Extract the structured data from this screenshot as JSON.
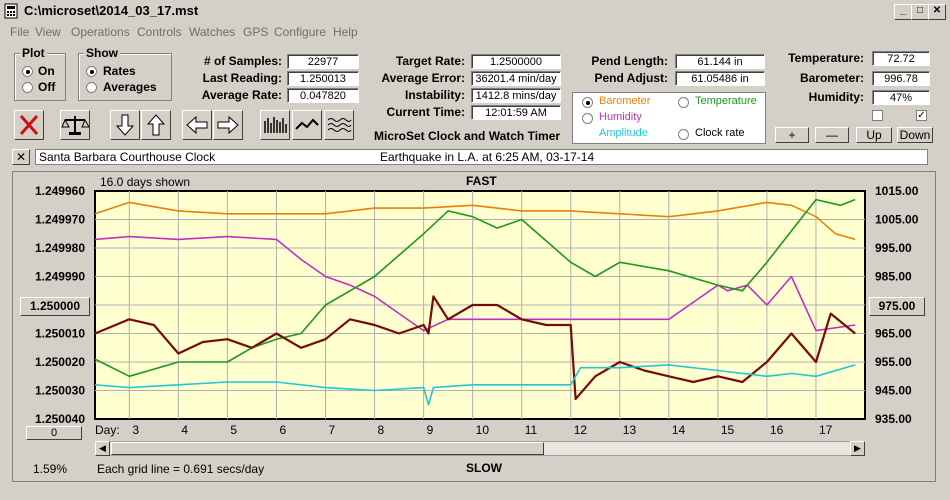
{
  "window": {
    "title": "C:\\microset\\2014_03_17.mst"
  },
  "menu": [
    "File",
    "View",
    "Operations",
    "Controls",
    "Watches",
    "GPS",
    "Configure",
    "Help"
  ],
  "plot_group": {
    "label": "Plot",
    "options": [
      "On",
      "Off"
    ],
    "selected": "On"
  },
  "show_group": {
    "label": "Show",
    "options": [
      "Rates",
      "Averages"
    ],
    "selected": "Rates"
  },
  "stats": {
    "samples_label": "# of Samples:",
    "samples": "22977",
    "last_reading_label": "Last Reading:",
    "last_reading": "1.250013",
    "average_rate_label": "Average Rate:",
    "average_rate": "0.047820",
    "target_rate_label": "Target Rate:",
    "target_rate": "1.2500000",
    "average_error_label": "Average Error:",
    "average_error": "36201.4 min/day",
    "instability_label": "Instability:",
    "instability": "1412.8 mins/day",
    "current_time_label": "Current Time:",
    "current_time": "12:01:59 AM",
    "pend_length_label": "Pend Length:",
    "pend_length": "61.144 in",
    "pend_adjust_label": "Pend Adjust:",
    "pend_adjust": "61.05486 in",
    "temperature_label": "Temperature:",
    "temperature": "72.72",
    "barometer_label": "Barometer:",
    "barometer": "996.78",
    "humidity_label": "Humidity:",
    "humidity": "47%"
  },
  "app_caption": "MicroSet Clock and Watch Timer",
  "sensor_select": {
    "options": [
      {
        "label": "Barometer",
        "color": "#e8800a",
        "selected": true
      },
      {
        "label": "Temperature",
        "color": "#1a9a1a",
        "selected": false
      },
      {
        "label": "Humidity",
        "color": "#c030c0",
        "selected": false
      },
      {
        "label": "Clock rate",
        "color": "#000000",
        "selected": false
      },
      {
        "label": "Amplitude",
        "color": "#20c8d8",
        "selected": false
      }
    ]
  },
  "scale_buttons": {
    "plus": "+",
    "minus": "—",
    "up": "Up",
    "down": "Down"
  },
  "checkboxes": [
    false,
    true
  ],
  "info_bar": {
    "clock_name": "Santa Barbara Courthouse Clock",
    "note": "Earthquake in L.A. at 6:25 AM, 03-17-14"
  },
  "chart_header": {
    "days_shown": "16.0 days shown",
    "fast": "FAST",
    "slow": "SLOW",
    "grid_note": "Each grid line = 0.691 secs/day",
    "percent": "1.59%"
  },
  "chart_buttons": {
    "left_value": "1.250000",
    "right_value": "975.00",
    "zero": "0"
  },
  "chart_data": {
    "type": "line",
    "left_axis": {
      "ticks": [
        "1.249960",
        "1.249970",
        "1.249980",
        "1.249990",
        "1.250000",
        "1.250010",
        "1.250020",
        "1.250030",
        "1.250040"
      ],
      "reversed": true,
      "range": [
        1.24996,
        1.25004
      ]
    },
    "right_axis": {
      "ticks": [
        "1015.00",
        "1005.00",
        "995.00",
        "985.00",
        "975.00",
        "965.00",
        "955.00",
        "945.00",
        "935.00"
      ],
      "range": [
        935,
        1015
      ]
    },
    "x_axis": {
      "label": "Day:",
      "ticks": [
        "3",
        "4",
        "5",
        "6",
        "7",
        "8",
        "9",
        "10",
        "11",
        "12",
        "13",
        "14",
        "15",
        "16",
        "17"
      ],
      "range": [
        2.3,
        18.0
      ]
    },
    "series": [
      {
        "name": "Barometer",
        "color": "#e8800a",
        "x": [
          2.3,
          3,
          4,
          5,
          6,
          7,
          8,
          9,
          10,
          11,
          12,
          13,
          14,
          15,
          16,
          16.5,
          17,
          17.4,
          17.8
        ],
        "y": [
          1007,
          1011,
          1008,
          1007,
          1007,
          1007,
          1009,
          1009,
          1010,
          1008,
          1008,
          1007,
          1006,
          1008,
          1011,
          1010,
          1006,
          1000,
          998
        ]
      },
      {
        "name": "Humidity",
        "color": "#c030c0",
        "x": [
          2.3,
          3,
          4,
          5,
          6,
          6.5,
          7,
          7.5,
          8,
          8.5,
          9,
          9.5,
          10,
          11,
          12,
          13,
          14,
          15,
          15.2,
          15.6,
          16,
          16.5,
          17,
          17.8
        ],
        "y": [
          998,
          999,
          998,
          999,
          998,
          991,
          985,
          982,
          978,
          972,
          966,
          970,
          970,
          970,
          970,
          970,
          970,
          982,
          980,
          982,
          975,
          985,
          966,
          968
        ]
      },
      {
        "name": "Temperature",
        "color": "#1a9a1a",
        "x": [
          2.3,
          3,
          4,
          5,
          5.5,
          6,
          6.5,
          7,
          7.5,
          8,
          9,
          9.5,
          10,
          10.5,
          11,
          12,
          12.5,
          13,
          14,
          15,
          15.5,
          16,
          16.5,
          17,
          17.5,
          17.8
        ],
        "y": [
          956,
          950,
          955,
          955,
          960,
          963,
          965,
          975,
          980,
          985,
          1000,
          1008,
          1006,
          1002,
          1005,
          990,
          985,
          990,
          987,
          982,
          980,
          990,
          1001,
          1012,
          1010,
          1012
        ]
      },
      {
        "name": "Clock rate",
        "color": "#7a0a0a",
        "x": [
          2.3,
          3,
          3.5,
          4,
          4.5,
          5,
          5.5,
          6,
          6.5,
          7,
          7.5,
          8,
          8.5,
          9,
          9.1,
          9.2,
          9.5,
          10,
          10.5,
          11,
          11.5,
          12,
          12.1,
          12.5,
          13,
          13.5,
          14,
          14.5,
          15,
          15.5,
          16,
          16.5,
          17,
          17.3,
          17.8
        ],
        "y": [
          965,
          970,
          968,
          958,
          962,
          963,
          960,
          965,
          960,
          963,
          970,
          968,
          965,
          968,
          965,
          978,
          970,
          975,
          975,
          970,
          968,
          968,
          942,
          950,
          955,
          952,
          950,
          948,
          950,
          948,
          955,
          965,
          955,
          972,
          965
        ]
      },
      {
        "name": "Amplitude",
        "color": "#20c8d8",
        "x": [
          2.3,
          3,
          4,
          5,
          6,
          7,
          8,
          9,
          9.1,
          9.2,
          10,
          11,
          12,
          12.2,
          13,
          14,
          15,
          16,
          16.5,
          17,
          17.8
        ],
        "y": [
          947,
          946,
          947,
          948,
          948,
          946,
          945,
          946,
          940,
          946,
          947,
          947,
          947,
          953,
          953,
          954,
          952,
          950,
          951,
          950,
          954
        ]
      }
    ]
  }
}
